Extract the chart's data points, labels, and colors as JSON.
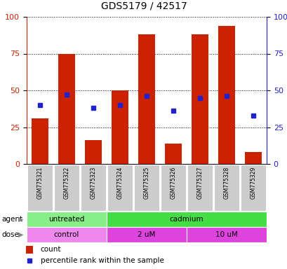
{
  "title": "GDS5179 / 42517",
  "samples": [
    "GSM775321",
    "GSM775322",
    "GSM775323",
    "GSM775324",
    "GSM775325",
    "GSM775326",
    "GSM775327",
    "GSM775328",
    "GSM775329"
  ],
  "count_values": [
    31,
    75,
    16,
    50,
    88,
    14,
    88,
    94,
    8
  ],
  "percentile_values": [
    40,
    47,
    38,
    40,
    46,
    36,
    45,
    46,
    33
  ],
  "bar_color": "#cc2200",
  "dot_color": "#2222cc",
  "agent_groups": [
    {
      "label": "untreated",
      "start": 0,
      "end": 3,
      "color": "#88ee88"
    },
    {
      "label": "cadmium",
      "start": 3,
      "end": 9,
      "color": "#44dd44"
    }
  ],
  "dose_groups": [
    {
      "label": "control",
      "start": 0,
      "end": 3,
      "color": "#ee88ee"
    },
    {
      "label": "2 uM",
      "start": 3,
      "end": 6,
      "color": "#dd44dd"
    },
    {
      "label": "10 uM",
      "start": 6,
      "end": 9,
      "color": "#dd44dd"
    }
  ],
  "ylim": [
    0,
    100
  ],
  "yticks": [
    0,
    25,
    50,
    75,
    100
  ],
  "left_axis_color": "#cc2200",
  "right_axis_color": "#2222cc",
  "bg_color": "#ffffff",
  "xticklabel_bg": "#cccccc",
  "legend_items": [
    {
      "color": "#cc2200",
      "label": "count"
    },
    {
      "color": "#2222cc",
      "label": "percentile rank within the sample"
    }
  ]
}
